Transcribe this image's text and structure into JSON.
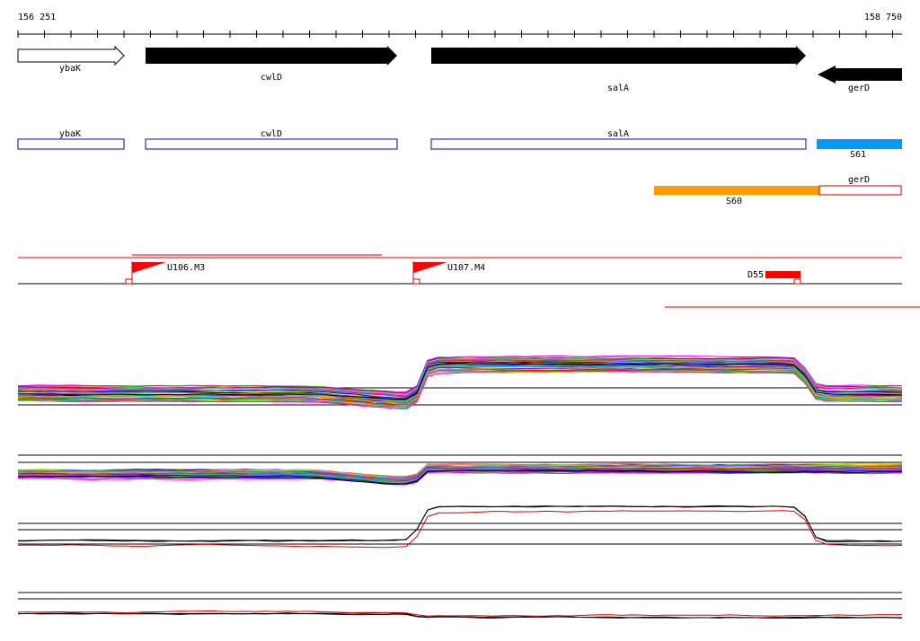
{
  "ruler": {
    "start": "156 251",
    "end": "158 750"
  },
  "genes": [
    {
      "label": "ybaK"
    },
    {
      "label": "cwlD"
    },
    {
      "label": "salA"
    },
    {
      "label": "gerD"
    }
  ],
  "features": [
    {
      "label": "ybaK"
    },
    {
      "label": "cwlD"
    },
    {
      "label": "salA"
    },
    {
      "label": "S61"
    },
    {
      "label": "S60"
    },
    {
      "label": "gerD"
    }
  ],
  "markers": [
    {
      "label": "U106.M3"
    },
    {
      "label": "U107.M4"
    },
    {
      "label": "D55"
    }
  ]
}
